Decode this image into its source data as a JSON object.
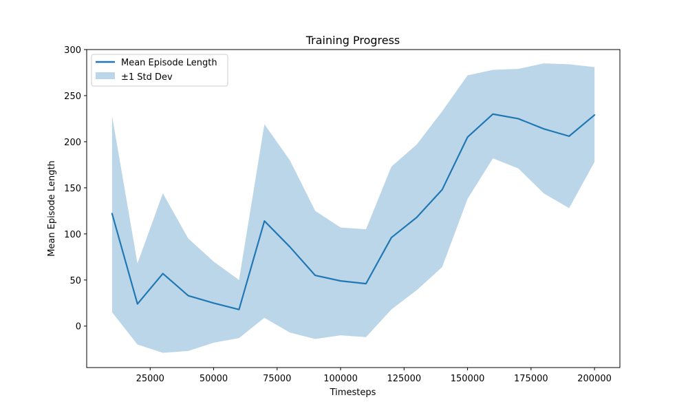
{
  "chart_data": {
    "type": "line",
    "title": "Training Progress",
    "xlabel": "Timesteps",
    "ylabel": "Mean Episode Length",
    "xlim": [
      0,
      210000
    ],
    "ylim": [
      -45,
      300
    ],
    "x_ticks": [
      25000,
      50000,
      75000,
      100000,
      125000,
      150000,
      175000,
      200000
    ],
    "x_tick_labels": [
      "25000",
      "50000",
      "75000",
      "100000",
      "125000",
      "150000",
      "175000",
      "200000"
    ],
    "y_ticks": [
      0,
      50,
      100,
      150,
      200,
      250,
      300
    ],
    "y_tick_labels": [
      "0",
      "50",
      "100",
      "150",
      "200",
      "250",
      "300"
    ],
    "grid": false,
    "legend_position": "top-left",
    "legend": {
      "mean_label": "Mean Episode Length",
      "std_label": "±1 Std Dev"
    },
    "colors": {
      "line": "#1f77b4",
      "band": "#1f77b4",
      "band_opacity": 0.3
    },
    "x": [
      10000,
      20000,
      30000,
      40000,
      50000,
      60000,
      70000,
      80000,
      90000,
      100000,
      110000,
      120000,
      130000,
      140000,
      150000,
      160000,
      170000,
      180000,
      190000,
      200000
    ],
    "series": [
      {
        "name": "Mean Episode Length",
        "values": [
          122,
          24,
          57,
          33,
          25,
          18,
          114,
          86,
          55,
          49,
          46,
          96,
          118,
          148,
          205,
          230,
          225,
          214,
          206,
          229
        ]
      }
    ],
    "band": {
      "name": "±1 Std Dev",
      "upper": [
        228,
        68,
        144,
        95,
        70,
        50,
        219,
        180,
        125,
        107,
        105,
        173,
        197,
        233,
        272,
        278,
        279,
        285,
        284,
        281
      ],
      "lower": [
        15,
        -20,
        -29,
        -27,
        -18,
        -13,
        9,
        -7,
        -14,
        -10,
        -12,
        18,
        39,
        64,
        138,
        182,
        171,
        144,
        128,
        178
      ]
    }
  }
}
